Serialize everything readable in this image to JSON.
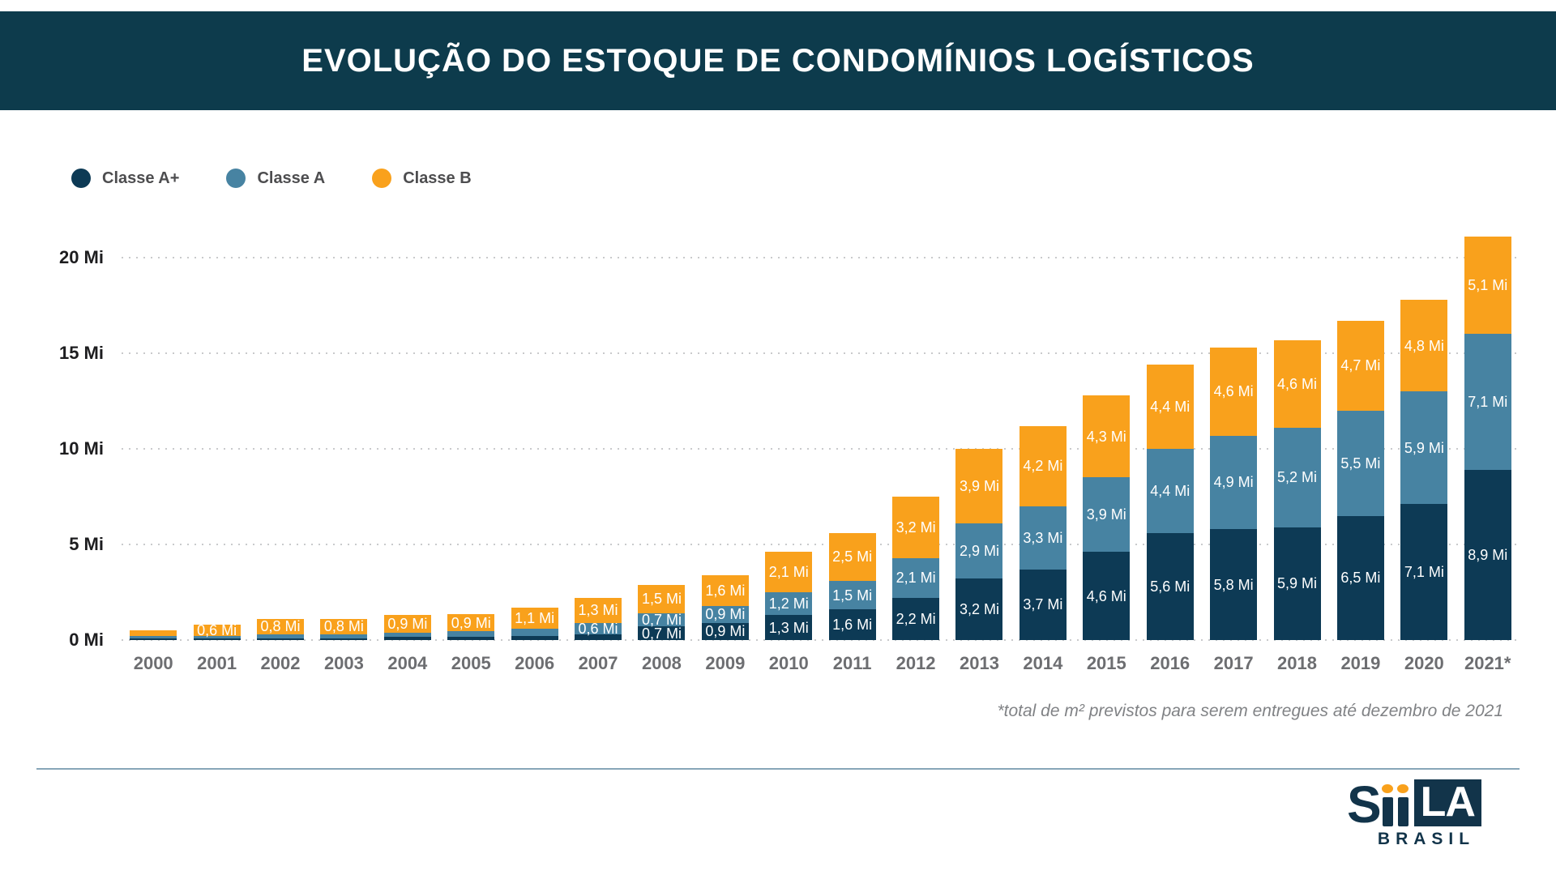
{
  "header": {
    "title": "EVOLUÇÃO DO ESTOQUE DE CONDOMÍNIOS LOGÍSTICOS",
    "bg_color": "#0d3b4c"
  },
  "legend": {
    "items": [
      {
        "label": "Classe A+",
        "color": "#0d3a55"
      },
      {
        "label": "Classe A",
        "color": "#4783a2"
      },
      {
        "label": "Classe B",
        "color": "#f9a11c"
      }
    ]
  },
  "chart_data": {
    "type": "bar",
    "stacked": true,
    "title": "Evolução do estoque de condomínios logísticos",
    "unit": "Mi m²",
    "ylim": [
      0,
      22
    ],
    "grid": "dotted-horizontal",
    "legend_position": "top-left",
    "yticks": [
      {
        "value": 0,
        "label": "0 Mi"
      },
      {
        "value": 5,
        "label": "5 Mi"
      },
      {
        "value": 10,
        "label": "10 Mi"
      },
      {
        "value": 15,
        "label": "15 Mi"
      },
      {
        "value": 20,
        "label": "20 Mi"
      }
    ],
    "categories": [
      "2000",
      "2001",
      "2002",
      "2003",
      "2004",
      "2005",
      "2006",
      "2007",
      "2008",
      "2009",
      "2010",
      "2011",
      "2012",
      "2013",
      "2014",
      "2015",
      "2016",
      "2017",
      "2018",
      "2019",
      "2020",
      "2021*"
    ],
    "series": [
      {
        "name": "Classe A+",
        "color": "#0d3a55",
        "values": [
          0.1,
          0.1,
          0.1,
          0.1,
          0.15,
          0.15,
          0.2,
          0.3,
          0.7,
          0.9,
          1.3,
          1.6,
          2.2,
          3.2,
          3.7,
          4.6,
          5.6,
          5.8,
          5.9,
          6.5,
          7.1,
          8.9
        ],
        "labels": [
          "",
          "",
          "",
          "",
          "",
          "",
          "",
          "",
          "0,7 Mi",
          "0,9 Mi",
          "1,3 Mi",
          "1,6 Mi",
          "2,2 Mi",
          "3,2 Mi",
          "3,7 Mi",
          "4,6 Mi",
          "5,6 Mi",
          "5,8 Mi",
          "5,9 Mi",
          "6,5 Mi",
          "7,1 Mi",
          "8,9 Mi"
        ]
      },
      {
        "name": "Classe A",
        "color": "#4783a2",
        "values": [
          0.1,
          0.1,
          0.2,
          0.2,
          0.25,
          0.3,
          0.4,
          0.6,
          0.7,
          0.9,
          1.2,
          1.5,
          2.1,
          2.9,
          3.3,
          3.9,
          4.4,
          4.9,
          5.2,
          5.5,
          5.9,
          7.1
        ],
        "labels": [
          "",
          "",
          "",
          "",
          "",
          "",
          "",
          "0,6 Mi",
          "0,7 Mi",
          "0,9 Mi",
          "1,2 Mi",
          "1,5 Mi",
          "2,1 Mi",
          "2,9 Mi",
          "3,3 Mi",
          "3,9 Mi",
          "4,4 Mi",
          "4,9 Mi",
          "5,2 Mi",
          "5,5 Mi",
          "5,9 Mi",
          "7,1 Mi"
        ]
      },
      {
        "name": "Classe B",
        "color": "#f9a11c",
        "values": [
          0.3,
          0.6,
          0.8,
          0.8,
          0.9,
          0.9,
          1.1,
          1.3,
          1.5,
          1.6,
          2.1,
          2.5,
          3.2,
          3.9,
          4.2,
          4.3,
          4.4,
          4.6,
          4.6,
          4.7,
          4.8,
          5.1
        ],
        "labels": [
          "",
          "0,6 Mi",
          "0,8 Mi",
          "0,8 Mi",
          "0,9 Mi",
          "0,9 Mi",
          "1,1 Mi",
          "1,3 Mi",
          "1,5 Mi",
          "1,6 Mi",
          "2,1 Mi",
          "2,5 Mi",
          "3,2 Mi",
          "3,9 Mi",
          "4,2 Mi",
          "4,3 Mi",
          "4,4 Mi",
          "4,6 Mi",
          "4,6 Mi",
          "4,7 Mi",
          "4,8 Mi",
          "5,1 Mi"
        ]
      }
    ],
    "footnote": "*total de m² previstos para serem entregues até dezembro de 2021"
  },
  "footer": {
    "logo": {
      "s": "S",
      "la": "LA",
      "sub": "BRASIL"
    }
  }
}
